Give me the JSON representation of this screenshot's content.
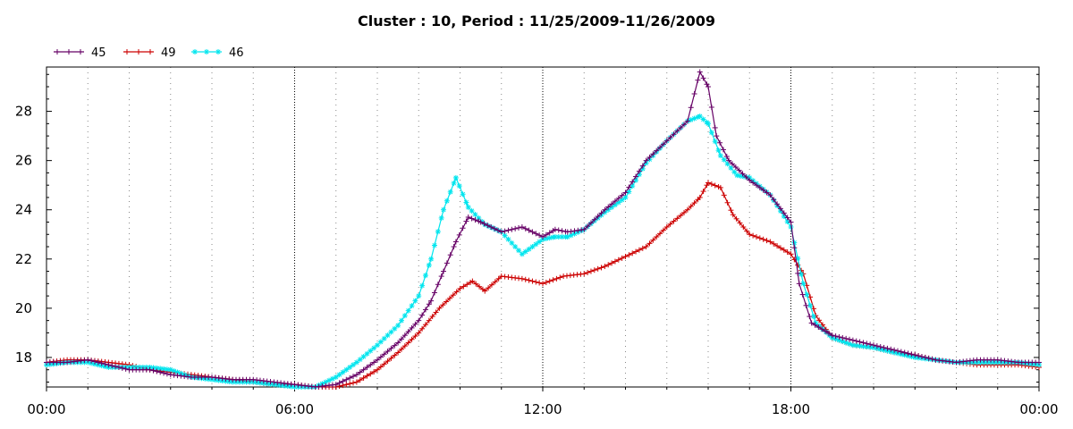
{
  "chart_data": {
    "type": "line",
    "title": "Cluster : 10, Period : 11/25/2009-11/26/2009",
    "xlabel": "",
    "ylabel": "",
    "x_ticks": [
      "00:00",
      "06:00",
      "12:00",
      "18:00",
      "00:00"
    ],
    "x_range_hours": [
      0,
      24
    ],
    "y_ticks": [
      18,
      20,
      22,
      24,
      26,
      28
    ],
    "ylim": [
      16.8,
      29.8
    ],
    "grid": true,
    "legend_position": "top-left",
    "series": [
      {
        "name": "45",
        "color": "#660066",
        "marker": "plus",
        "x": [
          0,
          0.5,
          1,
          1.5,
          2,
          2.5,
          3,
          3.5,
          4,
          4.5,
          5,
          5.5,
          6,
          6.5,
          7,
          7.5,
          8,
          8.5,
          9,
          9.3,
          9.6,
          9.9,
          10.2,
          10.5,
          11,
          11.5,
          12,
          12.3,
          12.6,
          13,
          13.5,
          14,
          14.5,
          15,
          15.5,
          15.8,
          16,
          16.2,
          16.5,
          17,
          17.5,
          18,
          18.2,
          18.5,
          19,
          19.5,
          20,
          20.5,
          21,
          21.5,
          22,
          22.5,
          23,
          23.5,
          24
        ],
        "values": [
          17.8,
          17.8,
          17.9,
          17.7,
          17.5,
          17.5,
          17.3,
          17.2,
          17.2,
          17.1,
          17.1,
          17.0,
          16.9,
          16.8,
          16.9,
          17.3,
          17.9,
          18.6,
          19.5,
          20.3,
          21.5,
          22.7,
          23.7,
          23.5,
          23.1,
          23.3,
          22.9,
          23.2,
          23.1,
          23.2,
          24.0,
          24.7,
          26.0,
          26.8,
          27.6,
          29.6,
          29.0,
          27.0,
          26.0,
          25.2,
          24.6,
          23.5,
          21.0,
          19.4,
          18.9,
          18.7,
          18.5,
          18.3,
          18.1,
          17.9,
          17.8,
          17.9,
          17.9,
          17.8,
          17.8
        ]
      },
      {
        "name": "49",
        "color": "#cc0000",
        "marker": "plus",
        "x": [
          0,
          0.5,
          1,
          1.5,
          2,
          2.5,
          3,
          3.5,
          4,
          4.5,
          5,
          5.5,
          6,
          6.5,
          7,
          7.5,
          8,
          8.5,
          9,
          9.5,
          10,
          10.3,
          10.6,
          11,
          11.5,
          12,
          12.5,
          13,
          13.5,
          14,
          14.5,
          15,
          15.5,
          15.8,
          16,
          16.3,
          16.6,
          17,
          17.5,
          18,
          18.3,
          18.6,
          19,
          19.5,
          20,
          20.5,
          21,
          21.5,
          22,
          22.5,
          23,
          23.5,
          24
        ],
        "values": [
          17.8,
          17.9,
          17.9,
          17.8,
          17.7,
          17.5,
          17.4,
          17.3,
          17.2,
          17.1,
          17.0,
          16.9,
          16.9,
          16.8,
          16.8,
          17.0,
          17.5,
          18.2,
          19.0,
          20.0,
          20.8,
          21.1,
          20.7,
          21.3,
          21.2,
          21.0,
          21.3,
          21.4,
          21.7,
          22.1,
          22.5,
          23.3,
          24.0,
          24.5,
          25.1,
          24.9,
          23.8,
          23.0,
          22.7,
          22.2,
          21.4,
          19.7,
          18.8,
          18.5,
          18.4,
          18.2,
          18.1,
          17.9,
          17.8,
          17.7,
          17.7,
          17.7,
          17.6
        ]
      },
      {
        "name": "46",
        "color": "#00e5ee",
        "marker": "star",
        "x": [
          0,
          0.5,
          1,
          1.5,
          2,
          2.5,
          3,
          3.5,
          4,
          4.5,
          5,
          5.5,
          6,
          6.5,
          7,
          7.5,
          8,
          8.5,
          9,
          9.3,
          9.6,
          9.9,
          10.2,
          10.6,
          11,
          11.5,
          12,
          12.3,
          12.6,
          13,
          13.5,
          14,
          14.5,
          15,
          15.5,
          15.8,
          16,
          16.3,
          16.7,
          17,
          17.5,
          18,
          18.3,
          18.6,
          19,
          19.5,
          20,
          20.5,
          21,
          21.5,
          22,
          22.5,
          23,
          23.5,
          24
        ],
        "values": [
          17.7,
          17.8,
          17.8,
          17.6,
          17.6,
          17.6,
          17.5,
          17.2,
          17.1,
          17.0,
          17.0,
          16.9,
          16.8,
          16.8,
          17.2,
          17.8,
          18.5,
          19.3,
          20.5,
          22.0,
          24.0,
          25.3,
          24.1,
          23.4,
          23.1,
          22.2,
          22.8,
          22.9,
          22.9,
          23.2,
          23.9,
          24.5,
          25.9,
          26.8,
          27.6,
          27.8,
          27.5,
          26.2,
          25.4,
          25.3,
          24.6,
          23.3,
          21.0,
          19.4,
          18.8,
          18.5,
          18.4,
          18.2,
          18.0,
          17.9,
          17.8,
          17.8,
          17.8,
          17.8,
          17.7
        ]
      }
    ]
  }
}
